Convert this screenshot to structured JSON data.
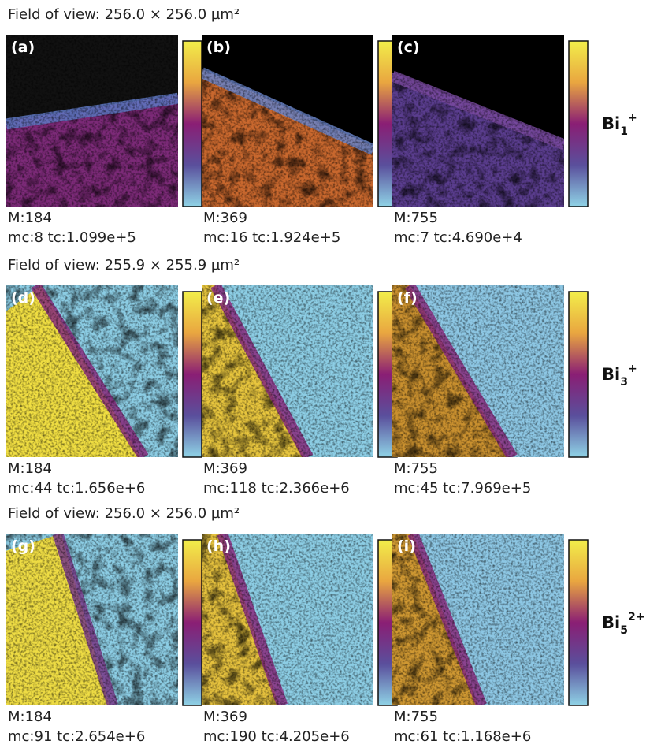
{
  "rows": [
    {
      "field_of_view": "Field of view: 256.0 × 256.0 µm²",
      "ion": {
        "base": "Bi",
        "sub": "1",
        "sup": "+"
      },
      "panels": [
        {
          "label": "(a)",
          "mass": "M:184",
          "counts": "mc:8 tc:1.099e+5"
        },
        {
          "label": "(b)",
          "mass": "M:369",
          "counts": "mc:16 tc:1.924e+5"
        },
        {
          "label": "(c)",
          "mass": "M:755",
          "counts": "mc:7 tc:4.690e+4"
        }
      ]
    },
    {
      "field_of_view": "Field of view: 255.9 × 255.9 µm²",
      "ion": {
        "base": "Bi",
        "sub": "3",
        "sup": "+"
      },
      "panels": [
        {
          "label": "(d)",
          "mass": "M:184",
          "counts": "mc:44 tc:1.656e+6"
        },
        {
          "label": "(e)",
          "mass": "M:369",
          "counts": "mc:118 tc:2.366e+6"
        },
        {
          "label": "(f)",
          "mass": "M:755",
          "counts": "mc:45 tc:7.969e+5"
        }
      ]
    },
    {
      "field_of_view": "Field of view: 256.0 × 256.0 µm²",
      "ion": {
        "base": "Bi",
        "sub": "5",
        "sup": "2+"
      },
      "panels": [
        {
          "label": "(g)",
          "mass": "M:184",
          "counts": "mc:91 tc:2.654e+6"
        },
        {
          "label": "(h)",
          "mass": "M:369",
          "counts": "mc:190 tc:4.205e+6"
        },
        {
          "label": "(i)",
          "mass": "M:755",
          "counts": "mc:61 tc:1.168e+6"
        }
      ]
    }
  ]
}
